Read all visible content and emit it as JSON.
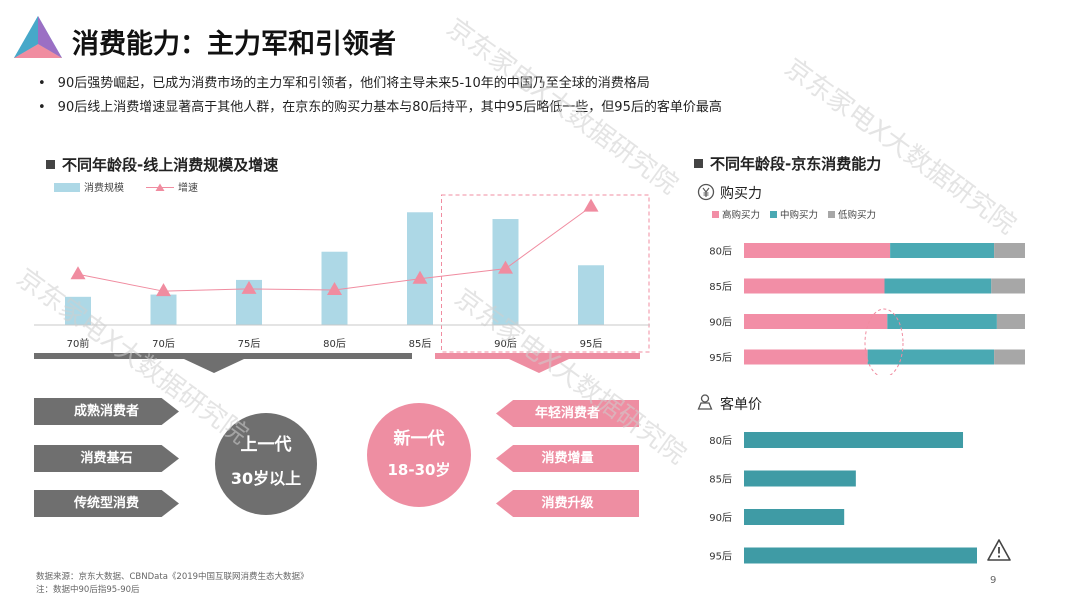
{
  "header": {
    "title": "消费能力：主力军和引领者",
    "bullets": [
      "90后强势崛起，已成为消费市场的主力军和引领者，他们将主导未来5-10年的中国乃至全球的消费格局",
      "90后线上消费增速显著高于其他人群，在京东的购买力基本与80后持平，其中95后略低一些，但95后的客单价最高"
    ]
  },
  "watermark": "京东家电X大数据研究院",
  "left_chart": {
    "title": "不同年龄段-线上消费规模及增速",
    "segments": {
      "old": {
        "name": "上一代",
        "age": "30岁以上",
        "tags": [
          "成熟消费者",
          "消费基石",
          "传统型消费"
        ],
        "color": "#6f6f6f"
      },
      "new": {
        "name": "新一代",
        "age": "18-30岁",
        "tags": [
          "年轻消费者",
          "消费增量",
          "消费升级"
        ],
        "color": "#ee8ea2"
      }
    }
  },
  "right_panel": {
    "title": "不同年龄段-京东消费能力",
    "purchase_label": "购买力",
    "aov_label": "客单价",
    "warning_icon": "warning-triangle-icon",
    "yuan_icon": "yuan-circle-icon",
    "person_icon": "person-icon"
  },
  "footer": {
    "source": "数据来源：京东大数据、CBNData《2019中国互联网消费生态大数据》",
    "note": "注：数据中90后指95-90后",
    "page": "9"
  },
  "chart_data": [
    {
      "type": "bar",
      "title": "不同年龄段-线上消费规模及增速",
      "categories": [
        "70前",
        "70后",
        "75后",
        "80后",
        "85后",
        "90后",
        "95后"
      ],
      "series": [
        {
          "name": "消费规模",
          "type": "bar",
          "color": "#add8e6",
          "values": [
            25,
            27,
            40,
            65,
            100,
            94,
            53
          ]
        },
        {
          "name": "增速",
          "type": "line",
          "color": "#f08ca0",
          "values": [
            45,
            30,
            32,
            31,
            41,
            50,
            105
          ]
        }
      ],
      "ylim": [
        0,
        110
      ],
      "grid": false,
      "legend": "top-left",
      "highlight_categories": [
        "90后",
        "95后"
      ]
    },
    {
      "type": "bar",
      "orientation": "horizontal",
      "stacked": true,
      "title": "购买力",
      "categories": [
        "80后",
        "85后",
        "90后",
        "95后"
      ],
      "series": [
        {
          "name": "高购买力",
          "color": "#f28ea6",
          "values": [
            52,
            50,
            51,
            44
          ]
        },
        {
          "name": "中购买力",
          "color": "#4aa9b3",
          "values": [
            37,
            38,
            39,
            45
          ]
        },
        {
          "name": "低购买力",
          "color": "#a7a7a7",
          "values": [
            11,
            12,
            10,
            11
          ]
        }
      ],
      "xlim": [
        0,
        100
      ],
      "legend": "top-left",
      "highlight_categories": [
        "90后",
        "95后"
      ]
    },
    {
      "type": "bar",
      "orientation": "horizontal",
      "title": "客单价",
      "categories": [
        "80后",
        "85后",
        "90后",
        "95后"
      ],
      "series": [
        {
          "name": "客单价",
          "color": "#3f9ba5",
          "values": [
            94,
            48,
            43,
            100
          ]
        }
      ],
      "xlim": [
        0,
        100
      ]
    }
  ]
}
